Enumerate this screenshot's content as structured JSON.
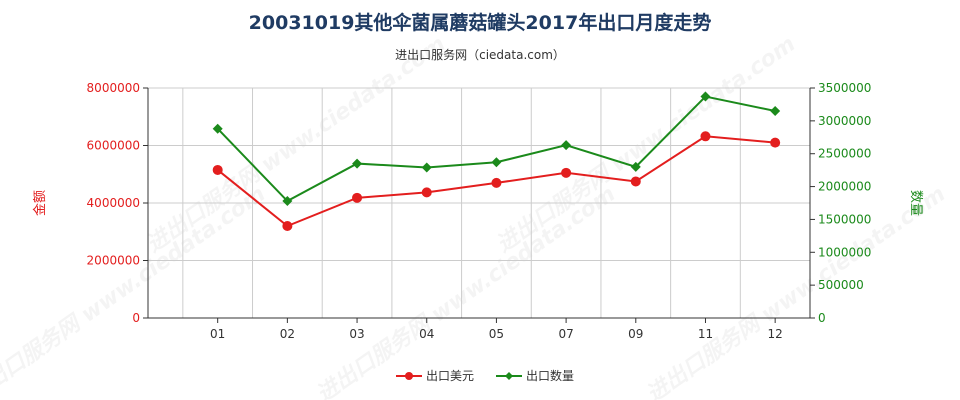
{
  "title": "20031019其他伞菌属蘑菇罐头2017年出口月度走势",
  "subtitle": "进出口服务网（ciedata.com）",
  "watermark": "进出口服务网 www.ciedata.com",
  "colors": {
    "left_series": "#e31e1e",
    "right_series": "#1b8a1b",
    "grid": "#cccccc",
    "axis": "#333333"
  },
  "chart_data": {
    "type": "line",
    "categories": [
      "01",
      "02",
      "03",
      "04",
      "05",
      "07",
      "09",
      "11",
      "12"
    ],
    "y_left": {
      "label": "金额",
      "range": [
        0,
        8000000
      ],
      "ticks": [
        "0",
        "2000000",
        "4000000",
        "6000000",
        "8000000"
      ]
    },
    "y_right": {
      "label": "数量",
      "range": [
        0,
        3500000
      ],
      "ticks": [
        "0",
        "500000",
        "1000000",
        "1500000",
        "2000000",
        "2500000",
        "3000000",
        "3500000"
      ]
    },
    "series": [
      {
        "name": "出口美元",
        "axis": "left",
        "color": "#e31e1e",
        "marker": "circle",
        "values": [
          5150000,
          3200000,
          4180000,
          4370000,
          4700000,
          5050000,
          4750000,
          6320000,
          6100000
        ]
      },
      {
        "name": "出口数量",
        "axis": "right",
        "color": "#1b8a1b",
        "marker": "diamond",
        "values": [
          2880000,
          1780000,
          2350000,
          2290000,
          2370000,
          2630000,
          2300000,
          3370000,
          3150000
        ]
      }
    ],
    "grid": true,
    "legend_position": "bottom-center"
  }
}
